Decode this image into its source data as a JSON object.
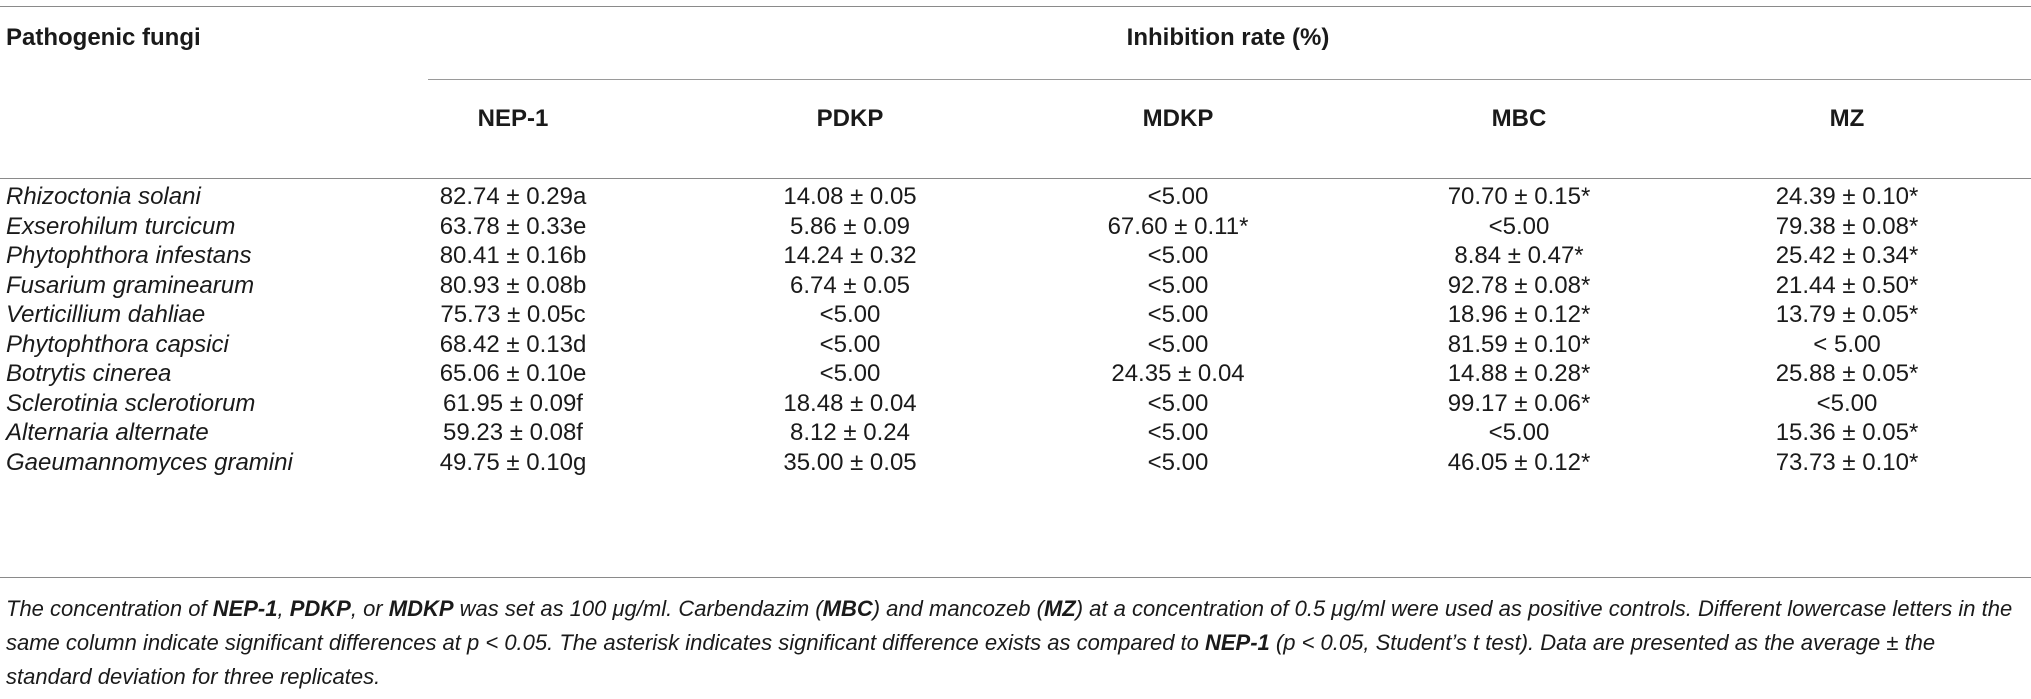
{
  "table": {
    "row_header_label": "Pathogenic fungi",
    "group_header_label": "Inhibition rate (%)",
    "columns": [
      "NEP-1",
      "PDKP",
      "MDKP",
      "MBC",
      "MZ"
    ],
    "rows": [
      {
        "species": "Rhizoctonia solani",
        "values": [
          "82.74 ± 0.29a",
          "14.08 ± 0.05",
          "<5.00",
          "70.70 ± 0.15*",
          "24.39 ± 0.10*"
        ]
      },
      {
        "species": "Exserohilum turcicum",
        "values": [
          "63.78 ± 0.33e",
          "5.86 ± 0.09",
          "67.60 ± 0.11*",
          "<5.00",
          "79.38 ± 0.08*"
        ]
      },
      {
        "species": "Phytophthora infestans",
        "values": [
          "80.41 ± 0.16b",
          "14.24 ± 0.32",
          "<5.00",
          "8.84 ± 0.47*",
          "25.42 ± 0.34*"
        ]
      },
      {
        "species": "Fusarium graminearum",
        "values": [
          "80.93 ± 0.08b",
          "6.74 ± 0.05",
          "<5.00",
          "92.78 ± 0.08*",
          "21.44 ± 0.50*"
        ]
      },
      {
        "species": "Verticillium dahliae",
        "values": [
          "75.73 ± 0.05c",
          "<5.00",
          "<5.00",
          "18.96 ± 0.12*",
          "13.79 ± 0.05*"
        ]
      },
      {
        "species": "Phytophthora capsici",
        "values": [
          "68.42 ± 0.13d",
          "<5.00",
          "<5.00",
          "81.59 ± 0.10*",
          "< 5.00"
        ]
      },
      {
        "species": "Botrytis cinerea",
        "values": [
          "65.06 ± 0.10e",
          "<5.00",
          "24.35 ± 0.04",
          "14.88 ± 0.28*",
          "25.88 ± 0.05*"
        ]
      },
      {
        "species": "Sclerotinia sclerotiorum",
        "values": [
          "61.95 ± 0.09f",
          "18.48 ± 0.04",
          "<5.00",
          "99.17 ± 0.06*",
          "<5.00"
        ]
      },
      {
        "species": "Alternaria alternate",
        "values": [
          "59.23 ± 0.08f",
          "8.12 ± 0.24",
          "<5.00",
          "<5.00",
          "15.36 ± 0.05*"
        ]
      },
      {
        "species": "Gaeumannomyces gramini",
        "values": [
          "49.75 ± 0.10g",
          "35.00 ± 0.05",
          "<5.00",
          "46.05 ± 0.12*",
          "73.73 ± 0.10*"
        ]
      }
    ]
  },
  "footnote": {
    "segments": [
      {
        "text": "The concentration of ",
        "bold": false
      },
      {
        "text": "NEP-1",
        "bold": true
      },
      {
        "text": ", ",
        "bold": false
      },
      {
        "text": "PDKP",
        "bold": true
      },
      {
        "text": ", or ",
        "bold": false
      },
      {
        "text": "MDKP",
        "bold": true
      },
      {
        "text": " was set as 100 μg/ml. Carbendazim (",
        "bold": false
      },
      {
        "text": "MBC",
        "bold": true
      },
      {
        "text": ") and mancozeb (",
        "bold": false
      },
      {
        "text": "MZ",
        "bold": true
      },
      {
        "text": ") at a concentration of 0.5 μg/ml were used as positive controls. Different lowercase letters in the same column indicate significant differences at p < 0.05. The asterisk indicates significant difference exists as compared to ",
        "bold": false
      },
      {
        "text": "NEP-1",
        "bold": true
      },
      {
        "text": " (p < 0.05, Student’s t test). Data are presented as the average ± the standard deviation for three replicates.",
        "bold": false
      }
    ]
  }
}
